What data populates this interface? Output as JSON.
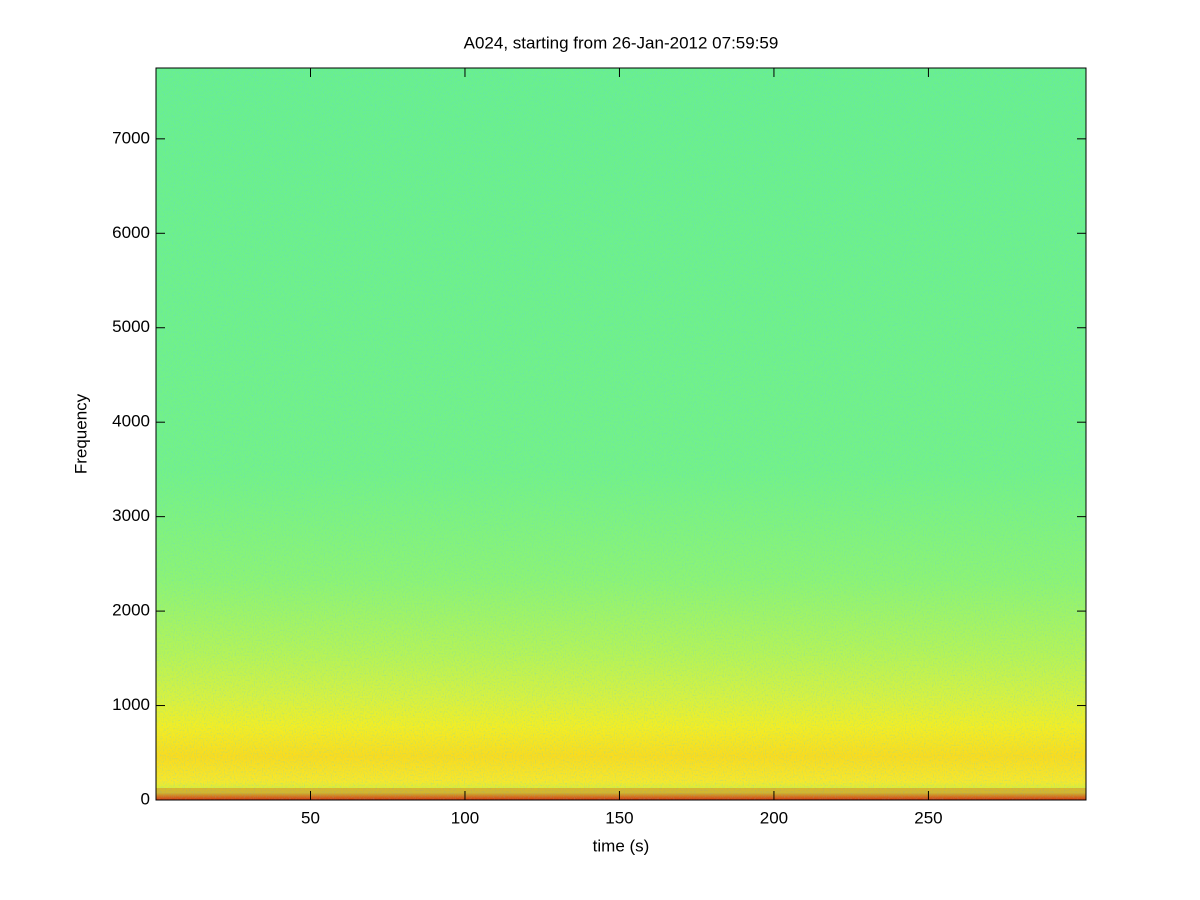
{
  "chart_data": {
    "type": "spectrogram",
    "title": "A024, starting from 26-Jan-2012 07:59:59",
    "x_label": "time (s)",
    "y_label": "Frequency",
    "xlim": [
      0,
      301
    ],
    "xticks": [
      50,
      100,
      150,
      200,
      250
    ],
    "ylim": [
      0,
      7750
    ],
    "yticks": [
      0,
      1000,
      2000,
      3000,
      4000,
      5000,
      6000,
      7000
    ],
    "colormap": "jet"
  }
}
